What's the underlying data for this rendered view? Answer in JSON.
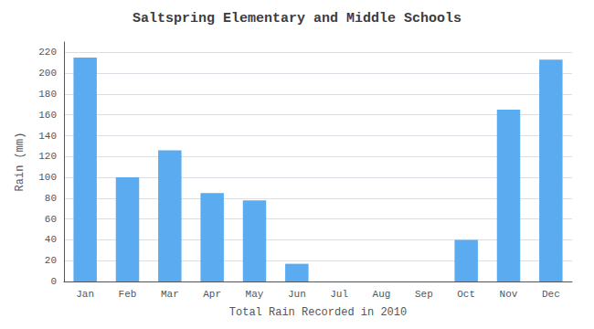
{
  "chart_data": {
    "type": "bar",
    "title": "Saltspring Elementary and Middle Schools",
    "xlabel": "Total Rain Recorded in 2010",
    "ylabel": "Rain (mm)",
    "categories": [
      "Jan",
      "Feb",
      "Mar",
      "Apr",
      "May",
      "Jun",
      "Jul",
      "Aug",
      "Sep",
      "Oct",
      "Nov",
      "Dec"
    ],
    "values": [
      215,
      100,
      126,
      85,
      78,
      17,
      0,
      0,
      0,
      40,
      165,
      213
    ],
    "color": "#5aabf0",
    "ylim": [
      0,
      230
    ],
    "yticks": [
      0,
      20,
      40,
      60,
      80,
      100,
      120,
      140,
      160,
      180,
      200,
      220
    ],
    "grid": true
  }
}
